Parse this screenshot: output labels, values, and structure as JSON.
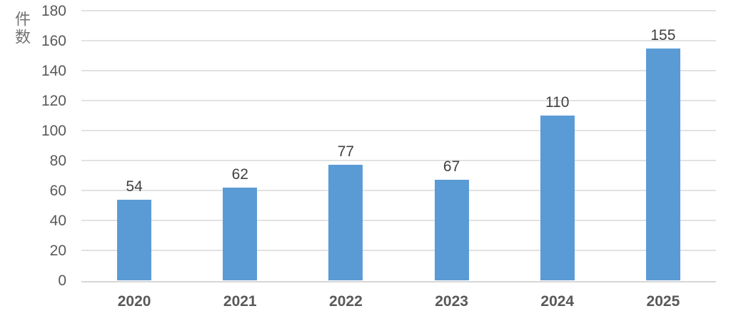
{
  "chart_data": {
    "type": "bar",
    "title": "",
    "categories": [
      "2020",
      "2021",
      "2022",
      "2023",
      "2024",
      "2025"
    ],
    "values": [
      54,
      62,
      77,
      67,
      110,
      155
    ],
    "xlabel": "",
    "ylabel": "件数",
    "ylim": [
      0,
      180
    ],
    "ytick_step": 20,
    "grid": "horizontal",
    "legend": "none",
    "data_labels": true,
    "colors": {
      "bar": "#5b9bd5",
      "gridline": "#e2e2e2",
      "axis_line": "#d6d6d6",
      "tick_label": "#595959",
      "data_label": "#404040",
      "axis_title": "#737373"
    }
  }
}
